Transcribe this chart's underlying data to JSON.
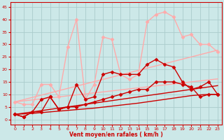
{
  "background_color": "#cce8e8",
  "grid_color": "#aacccc",
  "xlabel": "Vent moyen/en rafales ( km/h )",
  "xlabel_color": "#cc0000",
  "tick_color": "#cc0000",
  "xlim": [
    -0.5,
    23.5
  ],
  "ylim": [
    -2,
    47
  ],
  "yticks": [
    0,
    5,
    10,
    15,
    20,
    25,
    30,
    35,
    40,
    45
  ],
  "xticks": [
    0,
    1,
    2,
    3,
    4,
    5,
    6,
    7,
    8,
    9,
    10,
    11,
    12,
    13,
    14,
    15,
    16,
    17,
    18,
    19,
    20,
    21,
    22,
    23
  ],
  "lines": [
    {
      "x": [
        0,
        1,
        2,
        3,
        4,
        5,
        6,
        7,
        8,
        9,
        10,
        11,
        12,
        13,
        14,
        15,
        16,
        17,
        18,
        19,
        20,
        21,
        22,
        23
      ],
      "y": [
        7,
        7.9,
        8.8,
        9.7,
        10.6,
        11.5,
        12.4,
        13.3,
        14.2,
        15.1,
        16,
        16.9,
        17.8,
        18.7,
        19.6,
        20.5,
        21.4,
        22.3,
        23.2,
        24.1,
        25,
        25.9,
        26.8,
        27.7
      ],
      "color": "#ffaaaa",
      "linewidth": 1.0,
      "marker": null
    },
    {
      "x": [
        0,
        1,
        2,
        3,
        4,
        5,
        6,
        7,
        8,
        9,
        10,
        11,
        12,
        13,
        14,
        15,
        16,
        17,
        18,
        19,
        20,
        21,
        22,
        23
      ],
      "y": [
        7,
        7.4,
        7.8,
        8.2,
        8.6,
        9,
        9.4,
        9.8,
        10.2,
        10.6,
        11,
        11.4,
        11.8,
        12.2,
        12.6,
        13,
        13.4,
        13.8,
        14.2,
        14.6,
        15,
        15.4,
        15.8,
        16.2
      ],
      "color": "#ffaaaa",
      "linewidth": 1.0,
      "marker": null
    },
    {
      "x": [
        0,
        1,
        2,
        3,
        4,
        5,
        6,
        7,
        8,
        9,
        10,
        11,
        12,
        13,
        14,
        15,
        16,
        17,
        18,
        19,
        20,
        21,
        22,
        23
      ],
      "y": [
        7,
        6,
        6,
        14,
        14,
        9,
        29,
        40,
        8,
        14,
        33,
        32,
        18,
        16,
        18,
        39,
        42,
        43,
        41,
        33,
        34,
        30,
        30,
        27
      ],
      "color": "#ffaaaa",
      "linewidth": 1.0,
      "marker": "D",
      "markersize": 2.5
    },
    {
      "x": [
        0,
        1,
        2,
        3,
        4,
        5,
        6,
        7,
        8,
        9,
        10,
        11,
        12,
        13,
        14,
        15,
        16,
        17,
        18,
        19,
        20,
        21,
        22,
        23
      ],
      "y": [
        2,
        1,
        3,
        8,
        9,
        4,
        5,
        14,
        8,
        9,
        18,
        19,
        18,
        18,
        18,
        22,
        24,
        22,
        21,
        15,
        12,
        13,
        15,
        10
      ],
      "color": "#cc0000",
      "linewidth": 1.0,
      "marker": "D",
      "markersize": 2.5
    },
    {
      "x": [
        0,
        1,
        2,
        3,
        4,
        5,
        6,
        7,
        8,
        9,
        10,
        11,
        12,
        13,
        14,
        15,
        16,
        17,
        18,
        19,
        20,
        21,
        22,
        23
      ],
      "y": [
        2,
        2.5,
        3,
        3.5,
        4,
        4.5,
        5,
        5.5,
        6,
        6.5,
        7,
        7.5,
        8,
        8.5,
        9,
        9.5,
        10,
        10.5,
        11,
        11.5,
        12,
        12.5,
        13,
        13.5
      ],
      "color": "#cc0000",
      "linewidth": 1.0,
      "marker": null
    },
    {
      "x": [
        0,
        1,
        2,
        3,
        4,
        5,
        6,
        7,
        8,
        9,
        10,
        11,
        12,
        13,
        14,
        15,
        16,
        17,
        18,
        19,
        20,
        21,
        22,
        23
      ],
      "y": [
        2,
        2.2,
        2.4,
        2.7,
        3,
        3.3,
        3.6,
        3.9,
        4.2,
        4.5,
        4.9,
        5.3,
        5.7,
        6.1,
        6.5,
        7,
        7.5,
        8,
        8.5,
        9,
        9.5,
        9.8,
        10,
        10
      ],
      "color": "#cc0000",
      "linewidth": 1.0,
      "marker": null
    },
    {
      "x": [
        0,
        1,
        2,
        3,
        4,
        5,
        6,
        7,
        8,
        9,
        10,
        11,
        12,
        13,
        14,
        15,
        16,
        17,
        18,
        19,
        20,
        21,
        22,
        23
      ],
      "y": [
        2,
        1,
        3,
        3,
        9,
        4,
        5,
        5,
        6,
        7,
        8,
        9,
        10,
        11,
        12,
        12,
        15,
        15,
        15,
        14,
        13,
        9,
        10,
        10
      ],
      "color": "#cc0000",
      "linewidth": 1.0,
      "marker": "D",
      "markersize": 2.5
    }
  ]
}
